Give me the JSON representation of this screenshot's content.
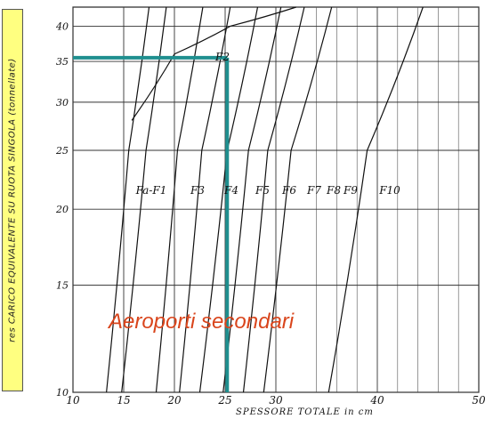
{
  "chart_data": {
    "type": "line",
    "title": "",
    "xlabel": "SPESSORE TOTALE in cm",
    "ylabel": "res CARICO EQUIVALENTE SU RUOTA SINGOLA (tonnellate)",
    "xlim": [
      10,
      50
    ],
    "ylim": [
      10,
      43
    ],
    "y_scale": "log",
    "grid": true,
    "x_ticks": [
      "10",
      "15",
      "20",
      "25",
      "30",
      "40",
      "50"
    ],
    "y_ticks": [
      "10",
      "15",
      "20",
      "25",
      "30",
      "35",
      "40"
    ],
    "curve_labels": [
      "Fa-F1",
      "F2",
      "F3",
      "F4",
      "F5",
      "F6",
      "F7",
      "F8",
      "F9",
      "F10"
    ],
    "series": [
      {
        "name": "Fa-F1",
        "x": [
          13.3,
          15.5,
          17.5
        ],
        "y": [
          10,
          25,
          43
        ]
      },
      {
        "name": "F2",
        "x": [
          15.8,
          20,
          25.5,
          32
        ],
        "y": [
          28,
          36,
          40,
          43
        ]
      },
      {
        "name": "F3",
        "x": [
          14.8,
          17.2,
          19.2
        ],
        "y": [
          10,
          25,
          43
        ]
      },
      {
        "name": "F4",
        "x": [
          18.2,
          20.3,
          22.8
        ],
        "y": [
          10,
          25,
          43
        ]
      },
      {
        "name": "F5",
        "x": [
          20.5,
          22.7,
          25.5
        ],
        "y": [
          10,
          25,
          43
        ]
      },
      {
        "name": "F6",
        "x": [
          22.5,
          25.2,
          28.2
        ],
        "y": [
          10,
          25,
          43
        ]
      },
      {
        "name": "F7",
        "x": [
          24.8,
          27.3,
          30.5
        ],
        "y": [
          10,
          25,
          43
        ]
      },
      {
        "name": "F8",
        "x": [
          26.8,
          29.2,
          32.8
        ],
        "y": [
          10,
          25,
          43
        ]
      },
      {
        "name": "F9",
        "x": [
          28.8,
          31.5,
          35.5
        ],
        "y": [
          10,
          25,
          43
        ]
      },
      {
        "name": "F10",
        "x": [
          35.2,
          39.0,
          44.5
        ],
        "y": [
          10,
          25,
          43
        ]
      }
    ],
    "highlight": {
      "x": 25.2,
      "y": 35.5,
      "color": "#1f8f8f"
    },
    "annotations": [
      "Aeroporti secondari"
    ]
  }
}
